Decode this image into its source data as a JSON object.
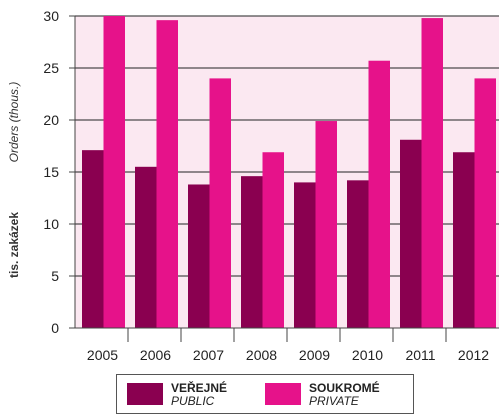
{
  "colors": {
    "public": "#8a0050",
    "private": "#e6128a",
    "plot_background": "#fbe8f1",
    "axis": "#444444"
  },
  "legend": {
    "public_cz": "VEŘEJNÉ",
    "public_en": "PUBLIC",
    "private_cz": "SOUKROMÉ",
    "private_en": "PRIVATE"
  },
  "chart_data": {
    "type": "bar",
    "title": "",
    "xlabel": "",
    "ylabel_cz": "tis. zakázek",
    "ylabel_en": "Orders (thous.)",
    "categories": [
      "2005",
      "2006",
      "2007",
      "2008",
      "2009",
      "2010",
      "2011",
      "2012"
    ],
    "series": [
      {
        "name": "VEŘEJNÉ / PUBLIC",
        "values": [
          17.1,
          15.5,
          13.8,
          14.6,
          14.0,
          14.2,
          18.1,
          16.9
        ]
      },
      {
        "name": "SOUKROMÉ / PRIVATE",
        "values": [
          30.0,
          29.6,
          24.0,
          16.9,
          19.9,
          25.7,
          29.8,
          24.0
        ]
      }
    ],
    "ylim": [
      0,
      30
    ],
    "yticks": [
      0,
      5,
      10,
      15,
      20,
      25,
      30
    ],
    "grid": true,
    "legend_position": "bottom"
  }
}
